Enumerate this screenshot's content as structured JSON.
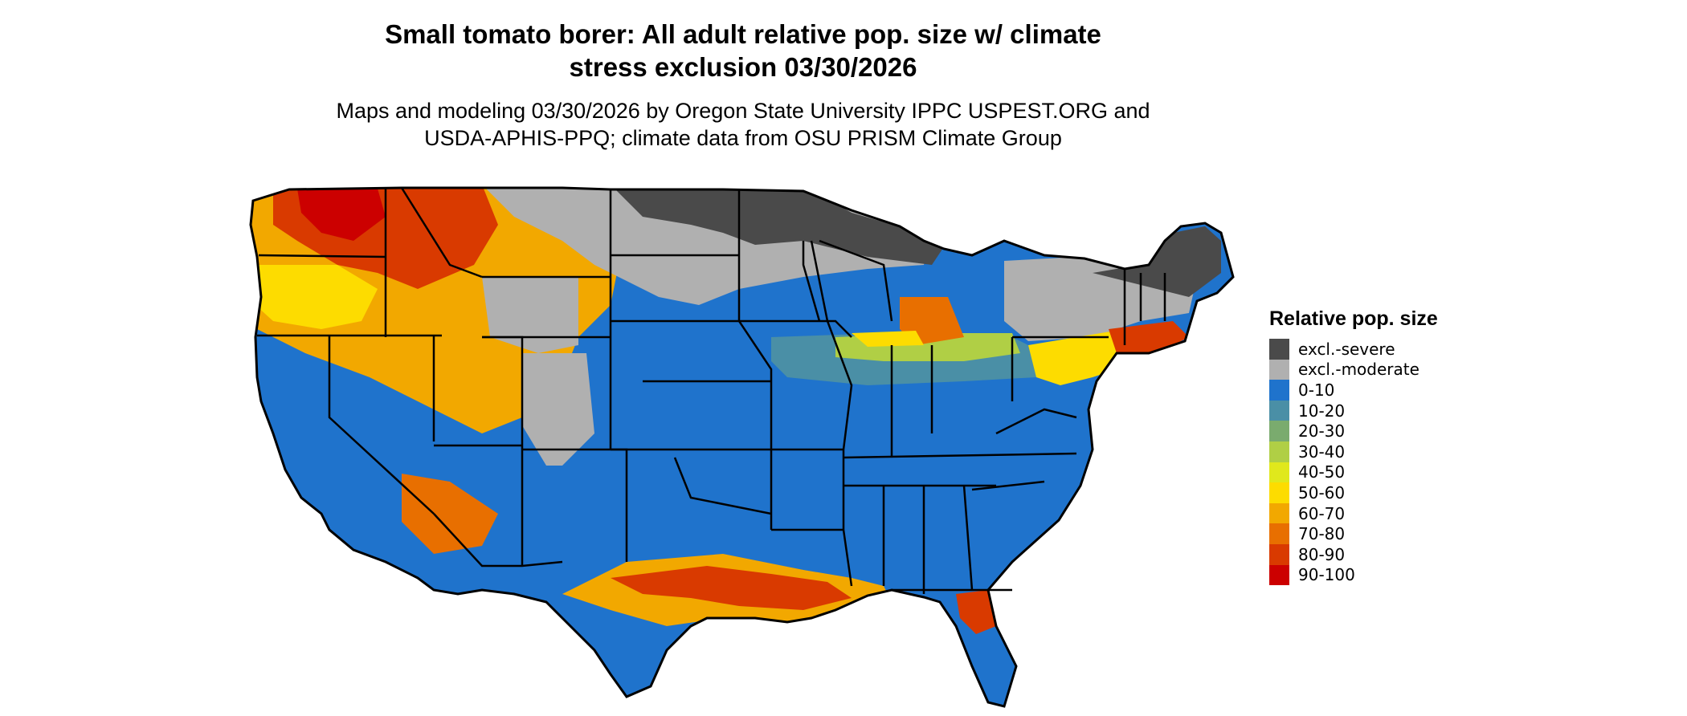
{
  "title_line1": "Small tomato borer: All adult relative pop. size w/ climate",
  "title_line2": "stress exclusion 03/30/2026",
  "subtitle_line1": "Maps and modeling 03/30/2026 by Oregon State University IPPC USPEST.ORG and",
  "subtitle_line2": "USDA-APHIS-PPQ; climate data from OSU PRISM Climate Group",
  "legend": {
    "title": "Relative pop. size",
    "items": [
      {
        "label": "excl.-severe",
        "color": "#4a4a4a"
      },
      {
        "label": "excl.-moderate",
        "color": "#b0b0b0"
      },
      {
        "label": "0-10",
        "color": "#1f73cc"
      },
      {
        "label": "10-20",
        "color": "#4a8fa6"
      },
      {
        "label": "20-30",
        "color": "#7aab6e"
      },
      {
        "label": "30-40",
        "color": "#b0cf45"
      },
      {
        "label": "40-50",
        "color": "#e0e81c"
      },
      {
        "label": "50-60",
        "color": "#fddc00"
      },
      {
        "label": "60-70",
        "color": "#f2a800"
      },
      {
        "label": "70-80",
        "color": "#e86f00"
      },
      {
        "label": "80-90",
        "color": "#d93a00"
      },
      {
        "label": "90-100",
        "color": "#cc0000"
      }
    ]
  }
}
